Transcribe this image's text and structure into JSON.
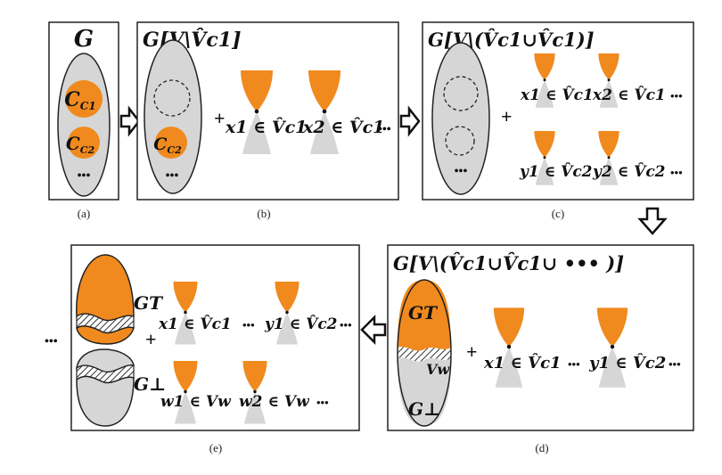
{
  "colors": {
    "orange": "#F08A1E",
    "grey": "#D6D6D6",
    "panel_border": "#222222",
    "hatch": "#333333"
  },
  "panels": {
    "a": {
      "title": "G",
      "communities": [
        "C1",
        "C2"
      ],
      "ellipsis": "•••",
      "caption": "(a)"
    },
    "b": {
      "title": "G[V\\V̂c1]",
      "community": "C2",
      "ellipsis": "•••",
      "plus": "+",
      "nodes": [
        "x1 ∈ V̂c1",
        "x2 ∈ V̂c1"
      ],
      "trail": "•••",
      "caption": "(b)"
    },
    "c": {
      "title": "G[V\\(V̂c1∪V̂c1)]",
      "ellipsis": "•••",
      "plus": "+",
      "row1": [
        "x1 ∈ V̂c1",
        "x2 ∈ V̂c1"
      ],
      "row2": [
        "y1 ∈ V̂c2",
        "y2 ∈ V̂c2"
      ],
      "trail": "•••",
      "caption": "(c)"
    },
    "d": {
      "title": "G[V\\(V̂c1∪V̂c1∪ ••• )]",
      "g_top": "GT",
      "g_bottom": "G⊥",
      "vw": "Vw",
      "plus": "+",
      "nodes": [
        "x1 ∈ V̂c1",
        "y1 ∈ V̂c2"
      ],
      "mid": "•••",
      "trail": "•••",
      "caption": "(d)"
    },
    "e": {
      "lead": "•••",
      "g_top": "GT",
      "g_bottom": "G⊥",
      "plus": "+",
      "row1": [
        "x1 ∈ V̂c1",
        "y1 ∈ V̂c2"
      ],
      "row2": [
        "w1 ∈ Vw",
        "w2 ∈ Vw"
      ],
      "mid": "•••",
      "trail": "•••",
      "caption": "(e)"
    }
  }
}
